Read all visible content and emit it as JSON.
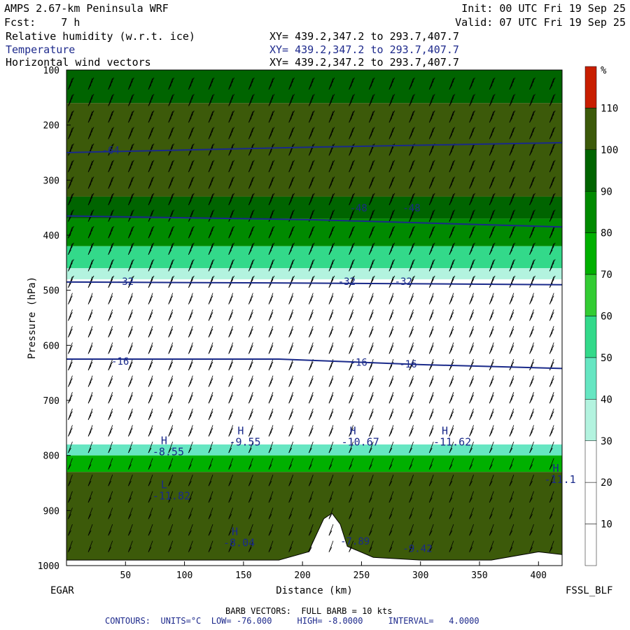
{
  "header": {
    "model": "AMPS 2.67-km Peninsula WRF",
    "fcst": "Fcst:    7 h",
    "init": "Init: 00 UTC Fri 19 Sep 25",
    "valid": "Valid: 07 UTC Fri 19 Sep 25",
    "fields": [
      {
        "label": "Relative humidity (w.r.t. ice)",
        "xy": "XY= 439.2,347.2 to 293.7,407.7"
      },
      {
        "label": "Temperature",
        "xy": "XY= 439.2,347.2 to 293.7,407.7"
      },
      {
        "label": "Horizontal wind vectors",
        "xy": "XY= 439.2,347.2 to 293.7,407.7"
      }
    ]
  },
  "chart_data": {
    "type": "heatmap",
    "xlabel": "Distance (km)",
    "ylabel": "Pressure (hPa)",
    "xlim": [
      0,
      420
    ],
    "ylim": [
      1000,
      100
    ],
    "xticks": [
      50,
      100,
      150,
      200,
      250,
      300,
      350,
      400
    ],
    "yticks": [
      100,
      200,
      300,
      400,
      500,
      600,
      700,
      800,
      900,
      1000
    ],
    "left_label": "EGAR",
    "right_label": "FSSL_BLF",
    "colorbar": {
      "unit": "%",
      "levels": [
        10,
        20,
        30,
        40,
        50,
        60,
        70,
        80,
        90,
        100,
        110
      ],
      "colors": [
        "#ffffff",
        "#ffffff",
        "#ffffff",
        "#b3f3df",
        "#66e6c2",
        "#33d98a",
        "#33cc33",
        "#00b000",
        "#008a00",
        "#006400",
        "#3c5a0a",
        "#c81e00"
      ]
    },
    "rh_layers": [
      {
        "p_top": 100,
        "p_bot": 160,
        "rh": 95
      },
      {
        "p_top": 160,
        "p_bot": 330,
        "rh": 103
      },
      {
        "p_top": 330,
        "p_bot": 370,
        "rh": 92
      },
      {
        "p_top": 370,
        "p_bot": 420,
        "rh": 80
      },
      {
        "p_top": 420,
        "p_bot": 460,
        "rh": 55
      },
      {
        "p_top": 460,
        "p_bot": 480,
        "rh": 35
      },
      {
        "p_top": 780,
        "p_bot": 800,
        "rh": 40
      },
      {
        "p_top": 800,
        "p_bot": 830,
        "rh": 70
      },
      {
        "p_top": 830,
        "p_bot": 1000,
        "rh": 103
      }
    ],
    "terrain": [
      [
        0,
        990
      ],
      [
        180,
        990
      ],
      [
        205,
        975
      ],
      [
        218,
        915
      ],
      [
        225,
        905
      ],
      [
        232,
        925
      ],
      [
        238,
        965
      ],
      [
        260,
        985
      ],
      [
        300,
        990
      ],
      [
        360,
        990
      ],
      [
        400,
        975
      ],
      [
        420,
        980
      ]
    ],
    "isotherms": [
      {
        "value": -64,
        "points": [
          [
            0,
            250
          ],
          [
            210,
            240
          ],
          [
            420,
            232
          ]
        ]
      },
      {
        "value": -48,
        "points": [
          [
            0,
            365
          ],
          [
            210,
            372
          ],
          [
            420,
            385
          ]
        ]
      },
      {
        "value": -32,
        "points": [
          [
            0,
            485
          ],
          [
            210,
            487
          ],
          [
            420,
            490
          ]
        ]
      },
      {
        "value": -16,
        "points": [
          [
            0,
            625
          ],
          [
            180,
            625
          ],
          [
            300,
            635
          ],
          [
            420,
            642
          ]
        ]
      }
    ],
    "contour_labels": [
      {
        "text": "-64",
        "x": 30,
        "p": 252
      },
      {
        "text": "-48",
        "x": 240,
        "p": 357
      },
      {
        "text": "-48",
        "x": 285,
        "p": 357
      },
      {
        "text": "-32",
        "x": 42,
        "p": 490
      },
      {
        "text": "-32",
        "x": 230,
        "p": 490
      },
      {
        "text": "-32",
        "x": 278,
        "p": 490
      },
      {
        "text": "-16",
        "x": 38,
        "p": 635
      },
      {
        "text": "-16",
        "x": 240,
        "p": 637
      },
      {
        "text": "-16",
        "x": 282,
        "p": 640
      },
      {
        "text": "-7.89",
        "x": 232,
        "p": 962
      },
      {
        "text": "-9.42",
        "x": 285,
        "p": 975
      }
    ],
    "extrema": [
      {
        "mark": "H",
        "value": "-8.55",
        "x": 80,
        "p": 800
      },
      {
        "mark": "H",
        "value": "-9.55",
        "x": 145,
        "p": 782
      },
      {
        "mark": "H",
        "value": "-10.67",
        "x": 240,
        "p": 782
      },
      {
        "mark": "H",
        "value": "-11.62",
        "x": 318,
        "p": 782
      },
      {
        "mark": "H",
        "value": "-11.1",
        "x": 412,
        "p": 850
      },
      {
        "mark": "H",
        "value": "-8.04",
        "x": 140,
        "p": 965
      },
      {
        "mark": "L",
        "value": "-11.82",
        "x": 80,
        "p": 880
      }
    ],
    "footer": {
      "barb_note": "BARB VECTORS:  FULL BARB = 10 kts",
      "contours": "CONTOURS:  UNITS=°C  LOW= -76.000     HIGH= -8.0000     INTERVAL=   4.0000"
    }
  }
}
